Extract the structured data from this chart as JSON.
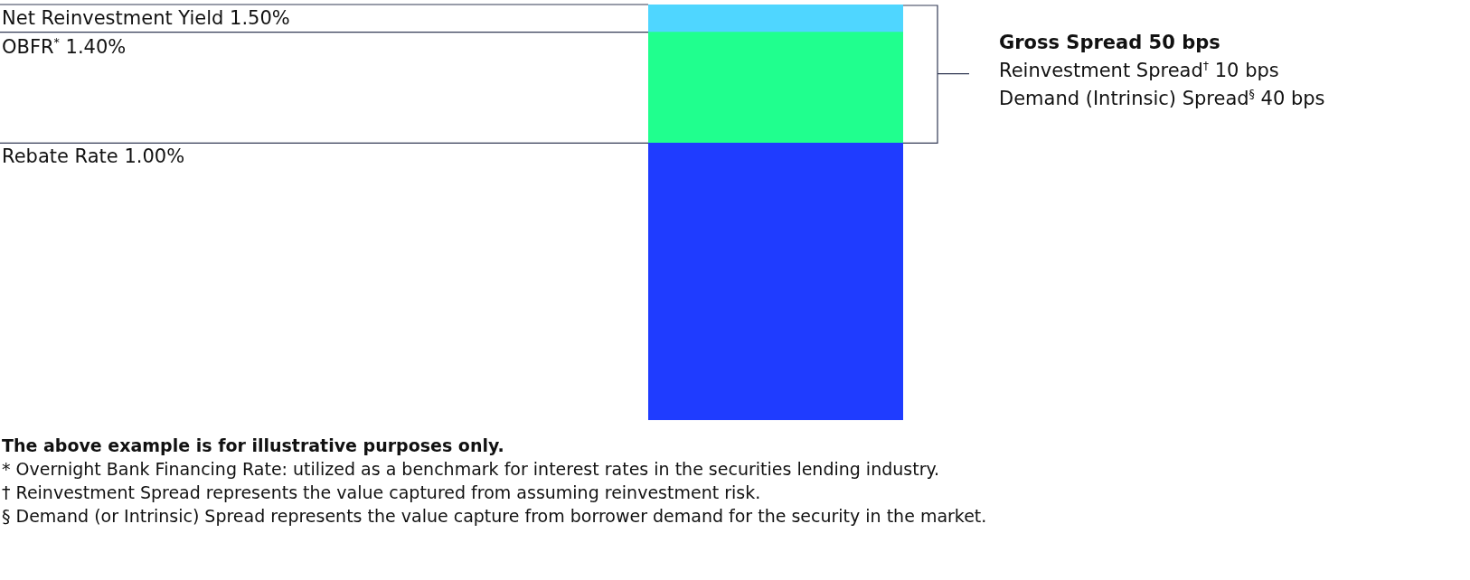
{
  "chart_data": {
    "type": "bar",
    "stacked": true,
    "categories": [
      null
    ],
    "series": [
      {
        "color": "#1f3cff",
        "values": [
          1.0
        ]
      },
      {
        "color": "#20ff8e",
        "values": [
          0.4
        ]
      },
      {
        "color": "#4fd6ff",
        "values": [
          0.1
        ]
      }
    ],
    "ylim": [
      0,
      1.5
    ],
    "tick_labels": false,
    "legend": false,
    "ref_lines": [
      {
        "axis": "y",
        "value": 1.5,
        "label": "Net Reinvestment Yield  1.50%"
      },
      {
        "axis": "y",
        "value": 1.4,
        "label": "OBFR$^{*}$  1.40%"
      },
      {
        "axis": "y",
        "value": 1.0,
        "label": "Rebate Rate  1.00%"
      }
    ],
    "annotations": [
      "Gross Spread 50 bps",
      "Reinvestment Spread$^{†}$ 10 bps",
      "Demand (Intrinsic) Spread$^{§}$   40 bps",
      "The above example is for illustrative purposes only.",
      "*  Overnight Bank Financing Rate: utilized as a benchmark for interest rates in the securities lending industry.",
      "†  Reinvestment Spread represents the value captured from assuming reinvestment risk.",
      "§  Demand (or Intrinsic) Spread represents the value capture from borrower demand for the security in the market."
    ]
  }
}
